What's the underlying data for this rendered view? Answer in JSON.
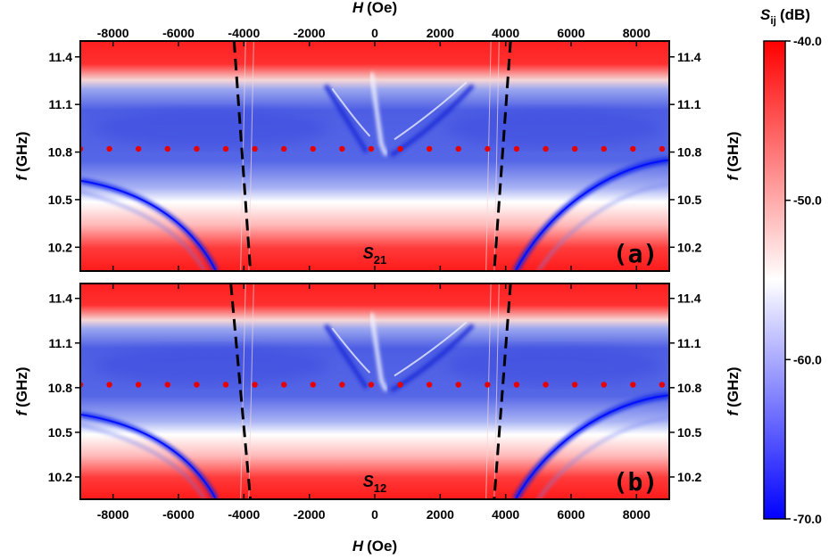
{
  "chart_data": {
    "type": "heatmap",
    "x_axis": {
      "title_var": "H",
      "title_unit": "(Oe)",
      "range": [
        -9000,
        9000
      ],
      "ticks": [
        -8000,
        -6000,
        -4000,
        -2000,
        0,
        2000,
        4000,
        6000,
        8000
      ],
      "tick_labels": [
        "-8000",
        "-6000",
        "-4000",
        "-2000",
        "0",
        "2000",
        "4000",
        "6000",
        "8000"
      ]
    },
    "y_axis": {
      "title_var": "f",
      "title_unit": "(GHz)",
      "range": [
        10.05,
        11.5
      ],
      "ticks": [
        10.2,
        10.5,
        10.8,
        11.1,
        11.4
      ],
      "tick_labels": [
        "10.2",
        "10.5",
        "10.8",
        "11.1",
        "11.4"
      ]
    },
    "colorbar": {
      "title_var": "S",
      "title_sub": "ij",
      "title_unit": "(dB)",
      "range": [
        -70,
        -40
      ],
      "ticks": [
        -40,
        -50,
        -60,
        -70
      ],
      "tick_labels": [
        "-40.0",
        "-50.0",
        "-60.0",
        "-70.0"
      ],
      "colors": [
        "#0000ff",
        "#ffffff",
        "#ff0000"
      ]
    },
    "panels": [
      {
        "label": "(a)",
        "param_main": "S",
        "param_sub": "21",
        "guide_lines": [
          {
            "style": "dashed",
            "points": [
              [
                -4300,
                11.5
              ],
              [
                -3800,
                10.05
              ]
            ]
          },
          {
            "style": "dashed",
            "points": [
              [
                4150,
                11.5
              ],
              [
                3650,
                10.05
              ]
            ]
          }
        ],
        "dotted_line": {
          "y": 10.82,
          "x_start": -9000,
          "x_end": 8800,
          "step": 889
        }
      },
      {
        "label": "(b)",
        "param_main": "S",
        "param_sub": "12",
        "guide_lines": [
          {
            "style": "dashed",
            "points": [
              [
                -4400,
                11.5
              ],
              [
                -3800,
                10.05
              ]
            ]
          },
          {
            "style": "dashed",
            "points": [
              [
                4150,
                11.5
              ],
              [
                3650,
                10.05
              ]
            ]
          }
        ],
        "dotted_line": {
          "y": 10.82,
          "x_start": -9000,
          "x_end": 8800,
          "step": 889
        }
      }
    ]
  }
}
